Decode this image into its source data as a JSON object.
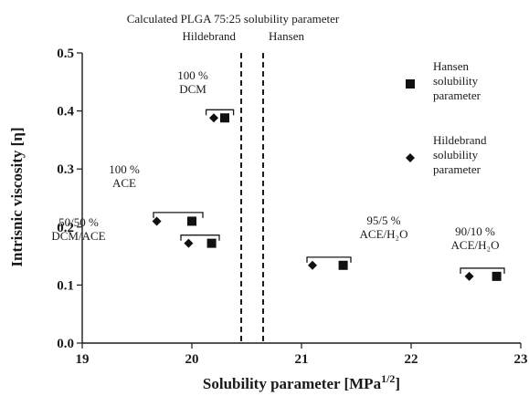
{
  "chart_data": {
    "type": "scatter",
    "xlabel": "Solubility parameter [MPa",
    "xlabel_sup": "1/2",
    "xlabel_close": "]",
    "ylabel": "Intrisnic viscosity [η]",
    "xlim": [
      19,
      23
    ],
    "ylim": [
      0.0,
      0.5
    ],
    "xticks": [
      "19",
      "20",
      "21",
      "22",
      "23"
    ],
    "yticks": [
      "0.0",
      "0.1",
      "0.2",
      "0.3",
      "0.4",
      "0.5"
    ],
    "grid": false,
    "legend_position": "right",
    "series": [
      {
        "name": "Hansen solubility parameter",
        "legend_lines": [
          "Hansen",
          "solubility",
          "parameter"
        ],
        "marker": "square",
        "points": [
          {
            "x": 20.3,
            "y": 0.388
          },
          {
            "x": 20.0,
            "y": 0.21
          },
          {
            "x": 20.18,
            "y": 0.172
          },
          {
            "x": 21.38,
            "y": 0.134
          },
          {
            "x": 22.78,
            "y": 0.115
          }
        ]
      },
      {
        "name": "Hildebrand solubility parameter",
        "legend_lines": [
          "Hildebrand",
          "solubility",
          "parameter"
        ],
        "marker": "diamond",
        "points": [
          {
            "x": 20.2,
            "y": 0.388
          },
          {
            "x": 19.68,
            "y": 0.21
          },
          {
            "x": 19.97,
            "y": 0.172
          },
          {
            "x": 21.1,
            "y": 0.134
          },
          {
            "x": 22.53,
            "y": 0.115
          }
        ]
      }
    ],
    "reference_lines": [
      {
        "x": 20.45,
        "label": "Hildebrand"
      },
      {
        "x": 20.65,
        "label": "Hansen"
      }
    ],
    "reference_title": "Calculated PLGA 75:25 solubility parameter",
    "annotations": [
      {
        "lines": [
          "100 %",
          "DCM"
        ],
        "bracket_x": [
          20.13,
          20.38
        ],
        "bracket_y": 0.402
      },
      {
        "lines": [
          "100 %",
          "ACE"
        ],
        "bracket_x": [
          19.65,
          20.1
        ],
        "bracket_y": 0.225
      },
      {
        "lines": [
          "50/50 %",
          "DCM/ACE"
        ],
        "bracket_x": [
          19.9,
          20.25
        ],
        "bracket_y": 0.186
      },
      {
        "lines": [
          "95/5 %",
          "ACE/H₂O"
        ],
        "bracket_x": [
          21.05,
          21.45
        ],
        "bracket_y": 0.148
      },
      {
        "lines": [
          "90/10 %",
          "ACE/H₂O"
        ],
        "bracket_x": [
          22.45,
          22.85
        ],
        "bracket_y": 0.129
      }
    ]
  }
}
